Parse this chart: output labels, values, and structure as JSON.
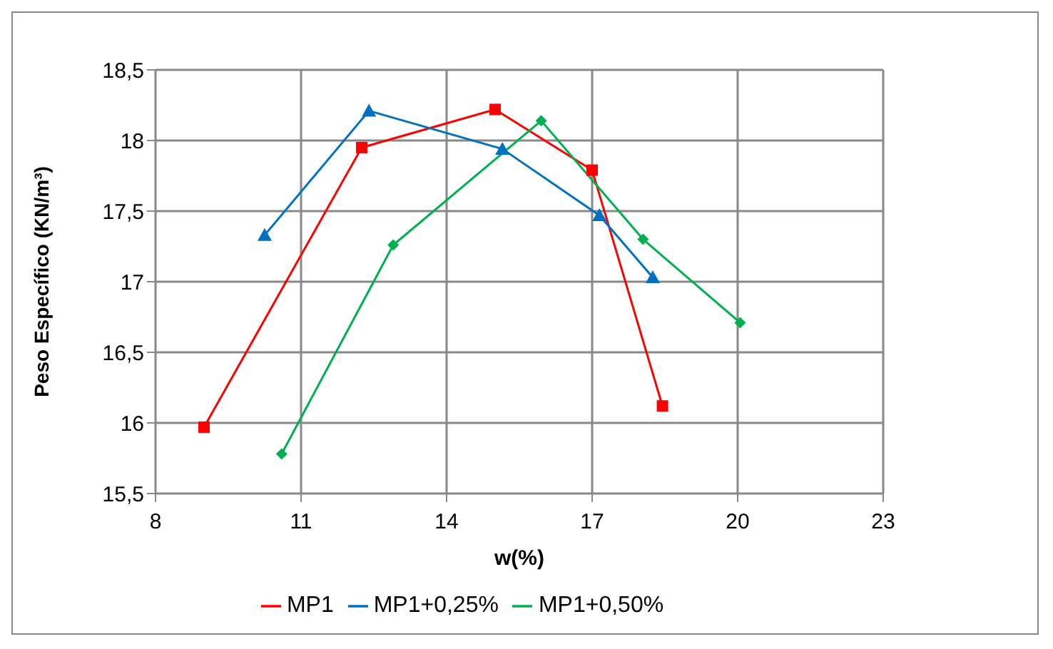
{
  "chart_data": {
    "type": "line",
    "xlabel": "w(%)",
    "ylabel": "Peso Específico  (KN/m³)",
    "xlim": [
      8,
      23
    ],
    "xticks": [
      8,
      11,
      14,
      17,
      20,
      23
    ],
    "ylim": [
      15.5,
      18.5
    ],
    "yticks": [
      {
        "value": 15.5,
        "label": "15,5"
      },
      16,
      {
        "value": 16.5,
        "label": "16,5"
      },
      17,
      {
        "value": 17.5,
        "label": "17,5"
      },
      18,
      {
        "value": 18.5,
        "label": "18,5"
      }
    ],
    "grid": true,
    "legend": "bottom",
    "series": [
      {
        "name": "MP1",
        "color": "#ff0000",
        "marker": "square",
        "x": [
          9.0,
          12.25,
          15.0,
          17.0,
          18.45
        ],
        "values": [
          15.97,
          17.95,
          18.22,
          17.79,
          16.12
        ]
      },
      {
        "name": "MP1+0,25%",
        "color": "#0070c0",
        "marker": "triangle",
        "x": [
          10.25,
          12.4,
          15.15,
          17.15,
          18.25
        ],
        "values": [
          17.33,
          18.21,
          17.94,
          17.47,
          17.03
        ]
      },
      {
        "name": "MP1+0,50%",
        "color": "#00b050",
        "marker": "diamond",
        "x": [
          10.6,
          12.9,
          15.95,
          18.05,
          20.05
        ],
        "values": [
          15.78,
          17.26,
          18.14,
          17.3,
          16.71
        ]
      }
    ]
  }
}
